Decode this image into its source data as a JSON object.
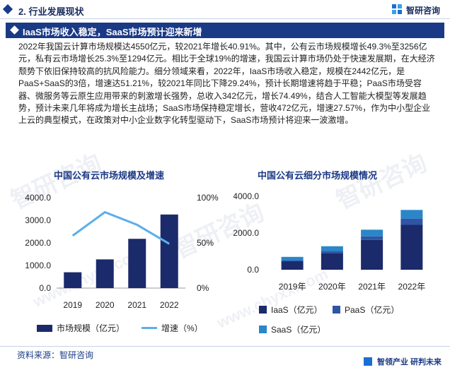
{
  "header": {
    "title": "2. 行业发展现状",
    "brand": "智研咨询"
  },
  "banner": {
    "title": "IaaS市场收入稳定，SaaS市场预计迎来新增"
  },
  "paragraph": "2022年我国云计算市场规模达4550亿元，较2021年增长40.91%。其中，公有云市场规模增长49.3%至3256亿元，私有云市场增长25.3%至1294亿元。相比于全球19%的增速，我国云计算市场仍处于快速发展期，在大经济颓势下依旧保持较高的抗风险能力。细分领域来看，2022年，IaaS市场收入稳定，规模在2442亿元，是PaaS+SaaS的3倍，增速达51.21%，较2021年同比下降29.24%，预计长期增速将趋于平稳；PaaS市场受容器、微服务等云原生应用带来的刺激增长强势，总收入342亿元，增长74.49%，结合人工智能大模型等发展趋势，预计未来几年将成为增长主战场；SaaS市场保持稳定增长，营收472亿元，增速27.57%，作为中小型企业上云的典型模式，在政策对中小企业数字化转型驱动下，SaaS市场预计将迎来一波激增。",
  "chart_data": [
    {
      "type": "bar+line",
      "title": "中国公有云市场规模及增速",
      "categories": [
        "2019",
        "2020",
        "2021",
        "2022"
      ],
      "series": [
        {
          "name": "市场规模（亿元）",
          "type": "bar",
          "axis": "left",
          "values": [
            700,
            1270,
            2180,
            3256
          ]
        },
        {
          "name": "增速（%）",
          "type": "line",
          "axis": "right",
          "values": [
            58,
            84,
            70,
            49
          ]
        }
      ],
      "y_left": {
        "ticks": [
          "0.0",
          "1000.0",
          "2000.0",
          "3000.0",
          "4000.0"
        ],
        "range": [
          0,
          4000
        ]
      },
      "y_right": {
        "ticks": [
          "0%",
          "50%",
          "100%"
        ],
        "range": [
          0,
          100
        ]
      },
      "colors": {
        "bar": "#1b2a6b",
        "line": "#5ab0ea"
      }
    },
    {
      "type": "stacked-bar",
      "title": "中国公有云细分市场规模情况",
      "categories": [
        "2019年",
        "2020年",
        "2021年",
        "2022年"
      ],
      "series": [
        {
          "name": "IaaS（亿元）",
          "values": [
            460,
            900,
            1620,
            2442
          ]
        },
        {
          "name": "PaaS（亿元）",
          "values": [
            40,
            100,
            200,
            342
          ]
        },
        {
          "name": "SaaS（亿元）",
          "values": [
            200,
            280,
            360,
            472
          ]
        }
      ],
      "y_left": {
        "ticks": [
          "0.0",
          "2000.0",
          "4000.0"
        ],
        "range": [
          0,
          4000
        ]
      },
      "colors": {
        "IaaS": "#1b2a6b",
        "PaaS": "#2f55a4",
        "SaaS": "#2a86c8"
      }
    }
  ],
  "source": "资料来源：智研咨询",
  "footer_brand": {
    "a": "智领产业",
    "b": "研判未来"
  },
  "watermark": [
    "智研咨询",
    "www.chyxx.com"
  ]
}
